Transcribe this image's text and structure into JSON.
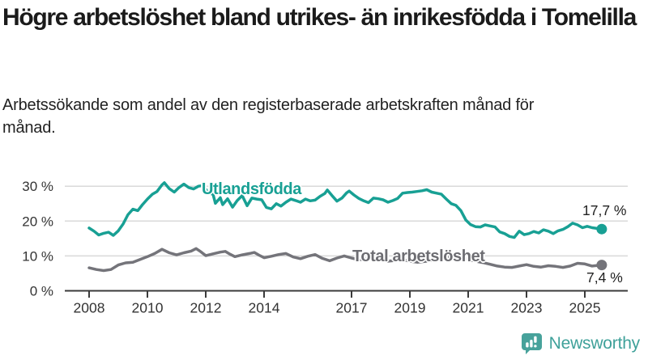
{
  "header": {
    "title": "Högre arbetslöshet bland utrikes- än inrikesfödda i Tomelilla",
    "subtitle": "Arbetssökande som andel av den registerbaserade arbetskraften månad för månad."
  },
  "footer": {
    "brand": "Newsworthy",
    "brand_color": "#3fa19a"
  },
  "chart_data": {
    "type": "line",
    "title": "Högre arbetslöshet bland utrikes- än inrikesfödda i Tomelilla",
    "subtitle": "Arbetssökande som andel av den registerbaserade arbetskraften månad för månad.",
    "xlabel": "",
    "ylabel": "",
    "x_unit": "year (monthly series)",
    "x_range": [
      2008.0,
      2025.58
    ],
    "ylim": [
      0,
      33
    ],
    "grid": "horizontal",
    "grid_color": "#d9d9d9",
    "axis_color": "#3b3b3b",
    "tick_text_color": "#333333",
    "yticks": [
      {
        "value": 0,
        "label": "0 %"
      },
      {
        "value": 10,
        "label": "10 %"
      },
      {
        "value": 20,
        "label": "20 %"
      },
      {
        "value": 30,
        "label": "30 %"
      }
    ],
    "xticks": [
      {
        "value": 2008,
        "label": "2008"
      },
      {
        "value": 2010,
        "label": "2010"
      },
      {
        "value": 2012,
        "label": "2012"
      },
      {
        "value": 2014,
        "label": "2014"
      },
      {
        "value": 2017,
        "label": "2017"
      },
      {
        "value": 2019,
        "label": "2019"
      },
      {
        "value": 2021,
        "label": "2021"
      },
      {
        "value": 2023,
        "label": "2023"
      },
      {
        "value": 2025,
        "label": "2025"
      }
    ],
    "series": [
      {
        "name": "Utlandsfödda",
        "color": "#18a094",
        "end_value": 17.7,
        "end_label": "17,7 %",
        "points": [
          [
            2008.0,
            18.0
          ],
          [
            2008.17,
            17.1
          ],
          [
            2008.33,
            16.0
          ],
          [
            2008.5,
            16.5
          ],
          [
            2008.67,
            16.8
          ],
          [
            2008.83,
            15.9
          ],
          [
            2009.0,
            17.2
          ],
          [
            2009.17,
            19.2
          ],
          [
            2009.33,
            21.8
          ],
          [
            2009.5,
            23.4
          ],
          [
            2009.67,
            23.0
          ],
          [
            2009.83,
            24.7
          ],
          [
            2010.0,
            26.3
          ],
          [
            2010.17,
            27.7
          ],
          [
            2010.33,
            28.5
          ],
          [
            2010.5,
            30.4
          ],
          [
            2010.58,
            31.0
          ],
          [
            2010.75,
            29.3
          ],
          [
            2010.92,
            28.3
          ],
          [
            2011.08,
            29.6
          ],
          [
            2011.25,
            30.6
          ],
          [
            2011.42,
            29.6
          ],
          [
            2011.58,
            29.2
          ],
          [
            2011.75,
            30.0
          ],
          [
            2011.92,
            30.2
          ],
          [
            2012.08,
            28.1
          ],
          [
            2012.25,
            27.7
          ],
          [
            2012.33,
            25.1
          ],
          [
            2012.5,
            26.7
          ],
          [
            2012.58,
            24.7
          ],
          [
            2012.75,
            26.4
          ],
          [
            2012.92,
            24.0
          ],
          [
            2013.08,
            25.9
          ],
          [
            2013.25,
            27.3
          ],
          [
            2013.42,
            24.4
          ],
          [
            2013.58,
            26.6
          ],
          [
            2013.75,
            26.3
          ],
          [
            2013.92,
            26.1
          ],
          [
            2014.08,
            23.9
          ],
          [
            2014.25,
            23.5
          ],
          [
            2014.42,
            25.0
          ],
          [
            2014.58,
            24.3
          ],
          [
            2014.75,
            25.4
          ],
          [
            2014.92,
            26.3
          ],
          [
            2015.08,
            25.9
          ],
          [
            2015.25,
            25.4
          ],
          [
            2015.42,
            26.3
          ],
          [
            2015.58,
            25.8
          ],
          [
            2015.75,
            26.0
          ],
          [
            2015.92,
            27.1
          ],
          [
            2016.08,
            27.9
          ],
          [
            2016.17,
            28.9
          ],
          [
            2016.33,
            27.3
          ],
          [
            2016.5,
            25.7
          ],
          [
            2016.67,
            26.6
          ],
          [
            2016.83,
            28.1
          ],
          [
            2016.92,
            28.6
          ],
          [
            2017.08,
            27.5
          ],
          [
            2017.25,
            26.5
          ],
          [
            2017.42,
            25.8
          ],
          [
            2017.58,
            25.3
          ],
          [
            2017.75,
            26.6
          ],
          [
            2017.92,
            26.4
          ],
          [
            2018.08,
            26.1
          ],
          [
            2018.25,
            25.4
          ],
          [
            2018.42,
            25.9
          ],
          [
            2018.58,
            26.5
          ],
          [
            2018.75,
            28.0
          ],
          [
            2018.92,
            28.2
          ],
          [
            2019.08,
            28.3
          ],
          [
            2019.25,
            28.5
          ],
          [
            2019.42,
            28.7
          ],
          [
            2019.58,
            29.0
          ],
          [
            2019.75,
            28.3
          ],
          [
            2019.92,
            28.0
          ],
          [
            2020.08,
            27.7
          ],
          [
            2020.25,
            26.3
          ],
          [
            2020.42,
            25.0
          ],
          [
            2020.58,
            24.5
          ],
          [
            2020.75,
            23.0
          ],
          [
            2020.92,
            20.3
          ],
          [
            2021.08,
            19.0
          ],
          [
            2021.25,
            18.4
          ],
          [
            2021.42,
            18.3
          ],
          [
            2021.58,
            18.9
          ],
          [
            2021.75,
            18.6
          ],
          [
            2021.92,
            18.3
          ],
          [
            2022.08,
            16.9
          ],
          [
            2022.25,
            16.4
          ],
          [
            2022.42,
            15.6
          ],
          [
            2022.58,
            15.3
          ],
          [
            2022.75,
            17.1
          ],
          [
            2022.92,
            16.1
          ],
          [
            2023.08,
            16.4
          ],
          [
            2023.25,
            17.0
          ],
          [
            2023.42,
            16.6
          ],
          [
            2023.58,
            17.5
          ],
          [
            2023.75,
            17.1
          ],
          [
            2023.92,
            16.4
          ],
          [
            2024.08,
            17.2
          ],
          [
            2024.25,
            17.6
          ],
          [
            2024.42,
            18.4
          ],
          [
            2024.58,
            19.4
          ],
          [
            2024.75,
            18.9
          ],
          [
            2024.92,
            18.1
          ],
          [
            2025.08,
            18.5
          ],
          [
            2025.25,
            18.1
          ],
          [
            2025.42,
            17.9
          ],
          [
            2025.58,
            17.7
          ]
        ]
      },
      {
        "name": "Total arbetslöshet",
        "color": "#74747a",
        "label_color": "#6d6d72",
        "end_value": 7.4,
        "end_label": "7,4 %",
        "points": [
          [
            2008.0,
            6.6
          ],
          [
            2008.25,
            6.1
          ],
          [
            2008.5,
            5.8
          ],
          [
            2008.75,
            6.1
          ],
          [
            2009.0,
            7.4
          ],
          [
            2009.25,
            8.0
          ],
          [
            2009.5,
            8.2
          ],
          [
            2009.75,
            9.0
          ],
          [
            2010.0,
            9.8
          ],
          [
            2010.25,
            10.7
          ],
          [
            2010.5,
            11.9
          ],
          [
            2010.75,
            10.9
          ],
          [
            2011.0,
            10.3
          ],
          [
            2011.25,
            10.9
          ],
          [
            2011.5,
            11.4
          ],
          [
            2011.67,
            12.1
          ],
          [
            2011.83,
            11.2
          ],
          [
            2012.0,
            10.1
          ],
          [
            2012.25,
            10.6
          ],
          [
            2012.5,
            11.1
          ],
          [
            2012.67,
            11.3
          ],
          [
            2012.83,
            10.5
          ],
          [
            2013.0,
            9.8
          ],
          [
            2013.25,
            10.3
          ],
          [
            2013.5,
            10.7
          ],
          [
            2013.67,
            11.0
          ],
          [
            2013.83,
            10.2
          ],
          [
            2014.0,
            9.5
          ],
          [
            2014.25,
            9.9
          ],
          [
            2014.5,
            10.4
          ],
          [
            2014.75,
            10.7
          ],
          [
            2015.0,
            9.7
          ],
          [
            2015.25,
            9.2
          ],
          [
            2015.5,
            9.9
          ],
          [
            2015.75,
            10.4
          ],
          [
            2016.0,
            9.3
          ],
          [
            2016.25,
            8.6
          ],
          [
            2016.5,
            9.4
          ],
          [
            2016.75,
            10.0
          ],
          [
            2017.0,
            9.4
          ],
          [
            2017.25,
            8.9
          ],
          [
            2017.5,
            9.1
          ],
          [
            2017.75,
            9.4
          ],
          [
            2018.0,
            8.9
          ],
          [
            2018.25,
            8.5
          ],
          [
            2018.5,
            8.7
          ],
          [
            2018.75,
            9.0
          ],
          [
            2019.0,
            8.5
          ],
          [
            2019.25,
            8.2
          ],
          [
            2019.5,
            8.4
          ],
          [
            2019.75,
            8.7
          ],
          [
            2020.0,
            8.9
          ],
          [
            2020.25,
            9.6
          ],
          [
            2020.5,
            9.9
          ],
          [
            2020.75,
            9.5
          ],
          [
            2021.0,
            9.0
          ],
          [
            2021.25,
            8.5
          ],
          [
            2021.5,
            8.1
          ],
          [
            2021.75,
            7.6
          ],
          [
            2022.0,
            7.1
          ],
          [
            2022.25,
            6.8
          ],
          [
            2022.5,
            6.7
          ],
          [
            2022.75,
            7.1
          ],
          [
            2023.0,
            7.5
          ],
          [
            2023.25,
            7.0
          ],
          [
            2023.5,
            6.8
          ],
          [
            2023.75,
            7.2
          ],
          [
            2024.0,
            7.0
          ],
          [
            2024.25,
            6.7
          ],
          [
            2024.5,
            7.1
          ],
          [
            2024.75,
            7.9
          ],
          [
            2025.0,
            7.7
          ],
          [
            2025.25,
            7.1
          ],
          [
            2025.58,
            7.4
          ]
        ]
      }
    ],
    "legend_position": "inline-labels"
  }
}
